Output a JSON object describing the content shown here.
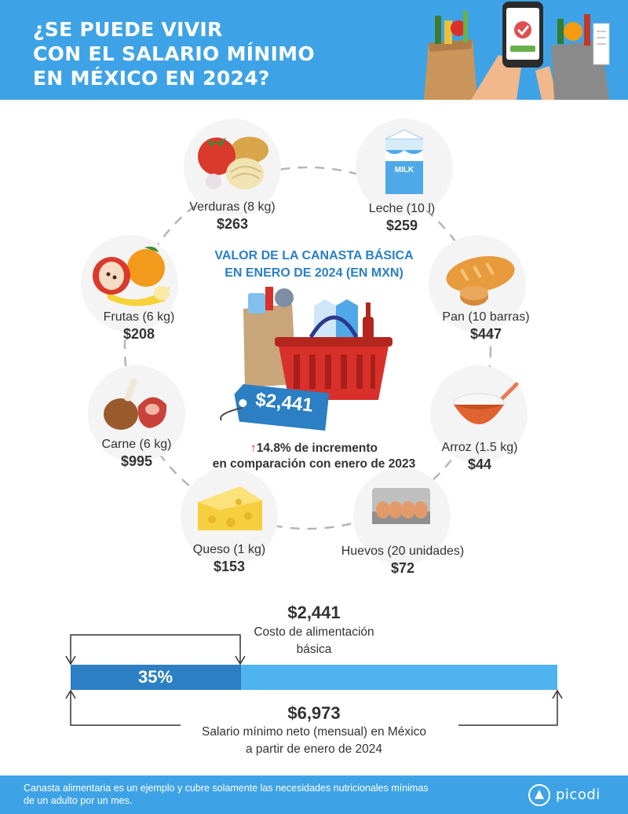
{
  "header": {
    "title_lines": [
      "¿SE PUEDE VIVIR",
      "CON EL SALARIO MÍNIMO",
      "EN MÉXICO EN 2024?"
    ]
  },
  "basket": {
    "title_lines": [
      "VALOR DE LA CANASTA BÁSICA",
      "EN ENERO DE 2024 (EN MXN)"
    ],
    "total": "$2,441",
    "increment_arrow": "↑",
    "increment_line1": "14.8% de incremento",
    "increment_line2": "en comparación con enero de 2023"
  },
  "items": [
    {
      "label": "Verduras (8 kg)",
      "price": "$263",
      "icon": "vegetables-icon"
    },
    {
      "label": "Leche (10 l)",
      "price": "$259",
      "icon": "milk-icon"
    },
    {
      "label": "Pan (10 barras)",
      "price": "$447",
      "icon": "bread-icon"
    },
    {
      "label": "Arroz (1.5 kg)",
      "price": "$44",
      "icon": "rice-icon"
    },
    {
      "label": "Huevos (20 unidades)",
      "price": "$72",
      "icon": "eggs-icon"
    },
    {
      "label": "Queso (1 kg)",
      "price": "$153",
      "icon": "cheese-icon"
    },
    {
      "label": "Carne (6 kg)",
      "price": "$995",
      "icon": "meat-icon"
    },
    {
      "label": "Frutas (6 kg)",
      "price": "$208",
      "icon": "fruits-icon"
    }
  ],
  "comparison": {
    "cost_amount": "$2,441",
    "cost_label_line1": "Costo de alimentación",
    "cost_label_line2": "básica",
    "percent_label": "35%",
    "percent_value": 35,
    "salary_amount": "$6,973",
    "salary_label_line1": "Salario mínimo neto (mensual) en México",
    "salary_label_line2": "a partir de enero de 2024"
  },
  "footer": {
    "note_line1": "Canasta alimentaria es un ejemplo y cubre solamente las necesidades nutricionales mínimas",
    "note_line2": "de un adulto por un mes.",
    "brand": "picodi"
  },
  "colors": {
    "header_blue": "#3ea3e6",
    "accent_blue": "#2a7fc4",
    "bar_dark": "#2b7fc2",
    "bar_light": "#4eb3ee",
    "arrow_red": "#d9302c"
  }
}
